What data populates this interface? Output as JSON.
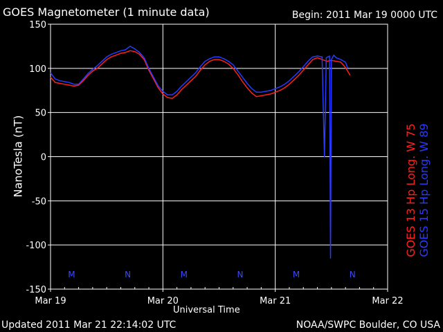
{
  "header": {
    "title": "GOES Magnetometer (1 minute data)",
    "begin": "Begin:  2011 Mar 19 0000 UTC"
  },
  "footer": {
    "updated": "Updated 2011 Mar 21 22:14:02 UTC",
    "source": "NOAA/SWPC Boulder, CO USA"
  },
  "colors": {
    "background": "#000000",
    "axis": "#ffffff",
    "goes13": "#ff2020",
    "goes15": "#2a3aff",
    "marker": "#3a4aff"
  },
  "chart_data": {
    "type": "line",
    "title": "GOES Magnetometer (1 minute data)",
    "xlabel": "Universal Time",
    "ylabel": "NanoTesla (nT)",
    "xlim": [
      0,
      72
    ],
    "ylim": [
      -150,
      150
    ],
    "x_unit": "hours since 2011 Mar 19 0000 UTC",
    "y_ticks": [
      150,
      100,
      50,
      0,
      -50,
      -100,
      -150
    ],
    "x_ticks": [
      {
        "x": 0,
        "label": "Mar 19"
      },
      {
        "x": 24,
        "label": "Mar 20"
      },
      {
        "x": 48,
        "label": "Mar 21"
      },
      {
        "x": 72,
        "label": "Mar 22"
      }
    ],
    "grid": true,
    "local_time_markers": [
      {
        "x": 4.5,
        "label": "M"
      },
      {
        "x": 16.5,
        "label": "N"
      },
      {
        "x": 28.5,
        "label": "M"
      },
      {
        "x": 40.5,
        "label": "N"
      },
      {
        "x": 52.5,
        "label": "M"
      },
      {
        "x": 64.5,
        "label": "N"
      }
    ],
    "legend": {
      "placement": "right",
      "vertical": true
    },
    "series": [
      {
        "name": "GOES 13 Hp   Long. W 75",
        "color": "#ff2020",
        "points": [
          [
            0,
            90
          ],
          [
            1,
            84
          ],
          [
            2,
            83
          ],
          [
            3,
            82
          ],
          [
            4,
            81
          ],
          [
            5,
            80
          ],
          [
            6,
            81
          ],
          [
            7,
            86
          ],
          [
            8,
            92
          ],
          [
            9,
            97
          ],
          [
            10,
            100
          ],
          [
            11,
            105
          ],
          [
            12,
            110
          ],
          [
            13,
            113
          ],
          [
            14,
            115
          ],
          [
            15,
            117
          ],
          [
            16,
            118
          ],
          [
            17,
            120
          ],
          [
            18,
            119
          ],
          [
            19,
            116
          ],
          [
            20,
            110
          ],
          [
            21,
            98
          ],
          [
            22,
            88
          ],
          [
            23,
            78
          ],
          [
            24,
            71
          ],
          [
            25,
            67
          ],
          [
            26,
            66
          ],
          [
            27,
            70
          ],
          [
            28,
            76
          ],
          [
            29,
            81
          ],
          [
            30,
            86
          ],
          [
            31,
            91
          ],
          [
            32,
            98
          ],
          [
            33,
            104
          ],
          [
            34,
            108
          ],
          [
            35,
            110
          ],
          [
            36,
            110
          ],
          [
            37,
            108
          ],
          [
            38,
            105
          ],
          [
            39,
            100
          ],
          [
            40,
            93
          ],
          [
            41,
            85
          ],
          [
            42,
            78
          ],
          [
            43,
            72
          ],
          [
            44,
            68
          ],
          [
            45,
            69
          ],
          [
            46,
            70
          ],
          [
            47,
            71
          ],
          [
            48,
            73
          ],
          [
            49,
            75
          ],
          [
            50,
            78
          ],
          [
            51,
            82
          ],
          [
            52,
            87
          ],
          [
            53,
            92
          ],
          [
            54,
            98
          ],
          [
            55,
            104
          ],
          [
            56,
            110
          ],
          [
            57,
            112
          ],
          [
            58,
            110
          ],
          [
            59,
            108
          ],
          [
            60,
            109
          ],
          [
            61,
            108
          ],
          [
            62,
            107
          ],
          [
            63,
            101
          ],
          [
            64,
            92
          ]
        ]
      },
      {
        "name": "GOES 15 Hp   Long. W 89",
        "color": "#2a3aff",
        "points": [
          [
            0,
            95
          ],
          [
            1,
            88
          ],
          [
            2,
            86
          ],
          [
            3,
            85
          ],
          [
            4,
            84
          ],
          [
            5,
            82
          ],
          [
            6,
            82
          ],
          [
            7,
            88
          ],
          [
            8,
            94
          ],
          [
            9,
            99
          ],
          [
            10,
            103
          ],
          [
            11,
            108
          ],
          [
            12,
            113
          ],
          [
            13,
            116
          ],
          [
            14,
            118
          ],
          [
            15,
            120
          ],
          [
            16,
            121
          ],
          [
            17,
            125
          ],
          [
            18,
            122
          ],
          [
            19,
            118
          ],
          [
            20,
            112
          ],
          [
            21,
            100
          ],
          [
            22,
            90
          ],
          [
            23,
            80
          ],
          [
            24,
            74
          ],
          [
            25,
            70
          ],
          [
            26,
            70
          ],
          [
            27,
            74
          ],
          [
            28,
            80
          ],
          [
            29,
            85
          ],
          [
            30,
            90
          ],
          [
            31,
            95
          ],
          [
            32,
            102
          ],
          [
            33,
            108
          ],
          [
            34,
            111
          ],
          [
            35,
            113
          ],
          [
            36,
            113
          ],
          [
            37,
            111
          ],
          [
            38,
            108
          ],
          [
            39,
            104
          ],
          [
            40,
            97
          ],
          [
            41,
            90
          ],
          [
            42,
            83
          ],
          [
            43,
            77
          ],
          [
            44,
            73
          ],
          [
            45,
            73
          ],
          [
            46,
            74
          ],
          [
            47,
            75
          ],
          [
            48,
            77
          ],
          [
            49,
            79
          ],
          [
            50,
            82
          ],
          [
            51,
            86
          ],
          [
            52,
            91
          ],
          [
            53,
            96
          ],
          [
            54,
            102
          ],
          [
            55,
            108
          ],
          [
            56,
            113
          ],
          [
            57,
            114
          ],
          [
            58,
            113
          ],
          [
            58.5,
            0
          ],
          [
            58.9,
            112
          ],
          [
            59.6,
            114
          ],
          [
            59.8,
            -115
          ],
          [
            60.0,
            110
          ],
          [
            60.5,
            115
          ],
          [
            61,
            112
          ],
          [
            62,
            110
          ],
          [
            63,
            107
          ],
          [
            63.5,
            100
          ]
        ]
      }
    ]
  }
}
